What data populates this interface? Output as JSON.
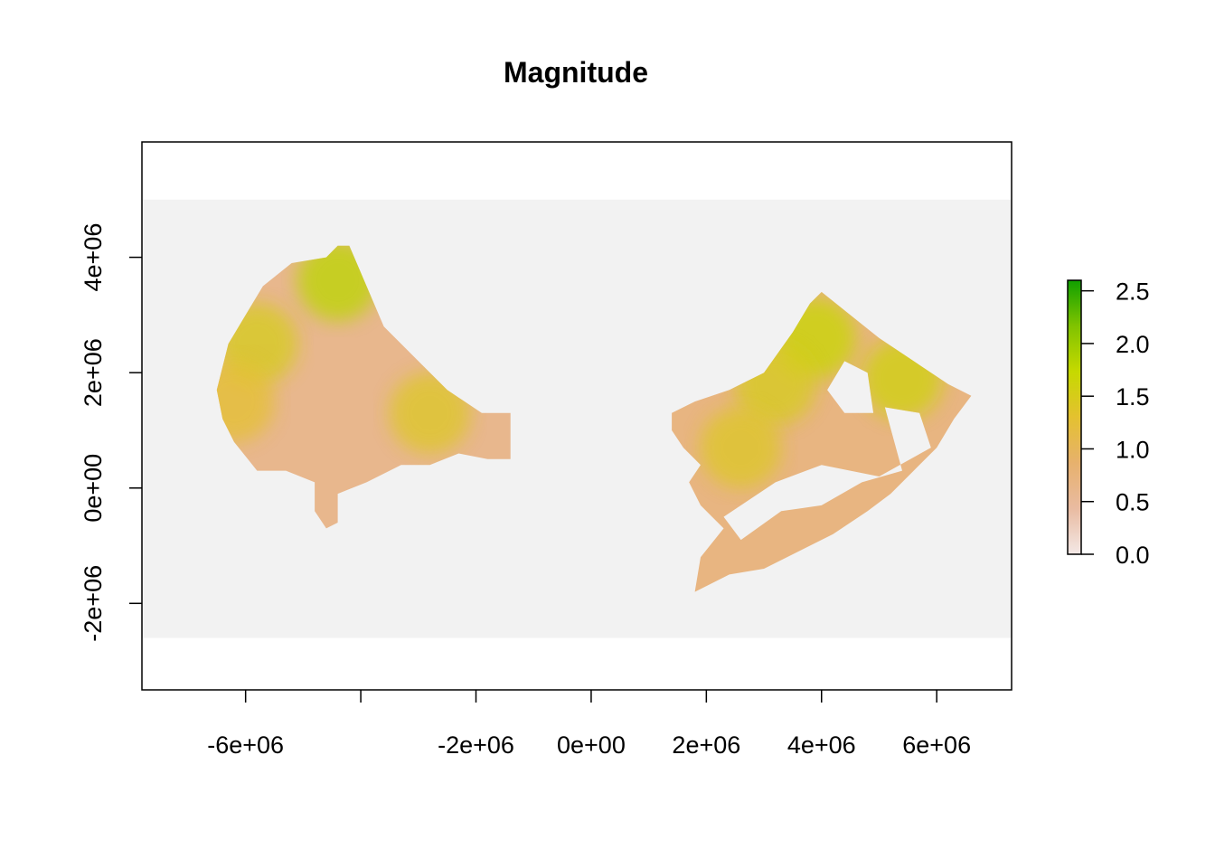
{
  "chart_data": {
    "type": "heatmap",
    "title": "Magnitude",
    "xlabel": "",
    "ylabel": "",
    "x_ticks": [
      -6000000,
      -4000000,
      -2000000,
      0,
      2000000,
      4000000,
      6000000
    ],
    "x_tick_labels": [
      "-6e+06",
      "",
      "-2e+06",
      "0e+00",
      "2e+06",
      "4e+06",
      "6e+06"
    ],
    "y_ticks": [
      -2000000,
      0,
      2000000,
      4000000
    ],
    "y_tick_labels": [
      "-2e+06",
      "0e+00",
      "2e+06",
      "4e+06"
    ],
    "xlim": [
      -7800000,
      7300000
    ],
    "ylim": [
      -3500000,
      6000000
    ],
    "raster_extent": {
      "xmin": -7800000,
      "xmax": 7300000,
      "ymin": -2600000,
      "ymax": 5000000
    },
    "background_color": "#f2f2f2",
    "legend": {
      "position": "right",
      "ticks": [
        0.0,
        0.5,
        1.0,
        1.5,
        2.0,
        2.5
      ],
      "tick_labels": [
        "0.0",
        "0.5",
        "1.0",
        "1.5",
        "2.0",
        "2.5"
      ],
      "range": [
        0.0,
        2.6
      ],
      "colors": [
        "#f3e8e6",
        "#e9bba1",
        "#e7b16d",
        "#e4c130",
        "#c6d900",
        "#80c300",
        "#10a000"
      ]
    },
    "regions": [
      {
        "name": "",
        "dominant_value": 0.6,
        "value_range": [
          0.0,
          2.6
        ],
        "outline": [
          [
            -4200000,
            4200000
          ],
          [
            -3900000,
            3500000
          ],
          [
            -3600000,
            2800000
          ],
          [
            -3000000,
            2200000
          ],
          [
            -2500000,
            1700000
          ],
          [
            -1900000,
            1300000
          ],
          [
            -1400000,
            1300000
          ],
          [
            -1400000,
            500000
          ],
          [
            -1800000,
            500000
          ],
          [
            -2300000,
            600000
          ],
          [
            -2800000,
            400000
          ],
          [
            -3300000,
            400000
          ],
          [
            -3900000,
            100000
          ],
          [
            -4400000,
            -100000
          ],
          [
            -4400000,
            -600000
          ],
          [
            -4600000,
            -700000
          ],
          [
            -4800000,
            -400000
          ],
          [
            -4800000,
            100000
          ],
          [
            -5300000,
            300000
          ],
          [
            -5800000,
            300000
          ],
          [
            -6200000,
            800000
          ],
          [
            -6400000,
            1200000
          ],
          [
            -6500000,
            1700000
          ],
          [
            -6300000,
            2500000
          ],
          [
            -6000000,
            3000000
          ],
          [
            -5700000,
            3500000
          ],
          [
            -5200000,
            3900000
          ],
          [
            -4600000,
            4000000
          ],
          [
            -4400000,
            4200000
          ]
        ],
        "highlights": [
          {
            "center": [
              -2800000,
              1300000
            ],
            "value": 1.4
          },
          {
            "center": [
              -4400000,
              3600000
            ],
            "value": 1.8
          },
          {
            "center": [
              -5800000,
              2500000
            ],
            "value": 1.5
          },
          {
            "center": [
              -6200000,
              1500000
            ],
            "value": 1.3
          }
        ]
      },
      {
        "name": "",
        "dominant_value": 0.7,
        "value_range": [
          0.0,
          2.6
        ],
        "outline": [
          [
            4000000,
            3400000
          ],
          [
            4500000,
            3000000
          ],
          [
            5000000,
            2600000
          ],
          [
            5600000,
            2200000
          ],
          [
            6200000,
            1800000
          ],
          [
            6600000,
            1600000
          ],
          [
            6300000,
            1200000
          ],
          [
            6000000,
            700000
          ],
          [
            5600000,
            300000
          ],
          [
            5200000,
            -100000
          ],
          [
            4800000,
            -400000
          ],
          [
            4200000,
            -800000
          ],
          [
            3600000,
            -1100000
          ],
          [
            3000000,
            -1400000
          ],
          [
            2400000,
            -1500000
          ],
          [
            1800000,
            -1800000
          ],
          [
            1900000,
            -1200000
          ],
          [
            2300000,
            -700000
          ],
          [
            2100000,
            -500000
          ],
          [
            1900000,
            -300000
          ],
          [
            1700000,
            100000
          ],
          [
            1900000,
            400000
          ],
          [
            1600000,
            700000
          ],
          [
            1400000,
            1000000
          ],
          [
            1400000,
            1300000
          ],
          [
            1800000,
            1500000
          ],
          [
            2400000,
            1700000
          ],
          [
            3000000,
            2000000
          ],
          [
            3500000,
            2700000
          ],
          [
            3800000,
            3200000
          ]
        ],
        "holes": [
          [
            [
              4400000,
              2200000
            ],
            [
              4800000,
              2000000
            ],
            [
              4900000,
              1300000
            ],
            [
              4400000,
              1300000
            ],
            [
              4100000,
              1700000
            ]
          ],
          [
            [
              5100000,
              1400000
            ],
            [
              5700000,
              1300000
            ],
            [
              5900000,
              700000
            ],
            [
              5000000,
              200000
            ],
            [
              4000000,
              400000
            ],
            [
              3200000,
              100000
            ],
            [
              2300000,
              -500000
            ],
            [
              2600000,
              -900000
            ],
            [
              3300000,
              -400000
            ],
            [
              4000000,
              -300000
            ],
            [
              4700000,
              100000
            ],
            [
              5400000,
              300000
            ]
          ]
        ],
        "highlights": [
          {
            "center": [
              3900000,
              2600000
            ],
            "value": 1.7
          },
          {
            "center": [
              3200000,
              1800000
            ],
            "value": 1.5
          },
          {
            "center": [
              5400000,
              1900000
            ],
            "value": 1.6
          },
          {
            "center": [
              2600000,
              700000
            ],
            "value": 1.4
          }
        ]
      }
    ]
  }
}
